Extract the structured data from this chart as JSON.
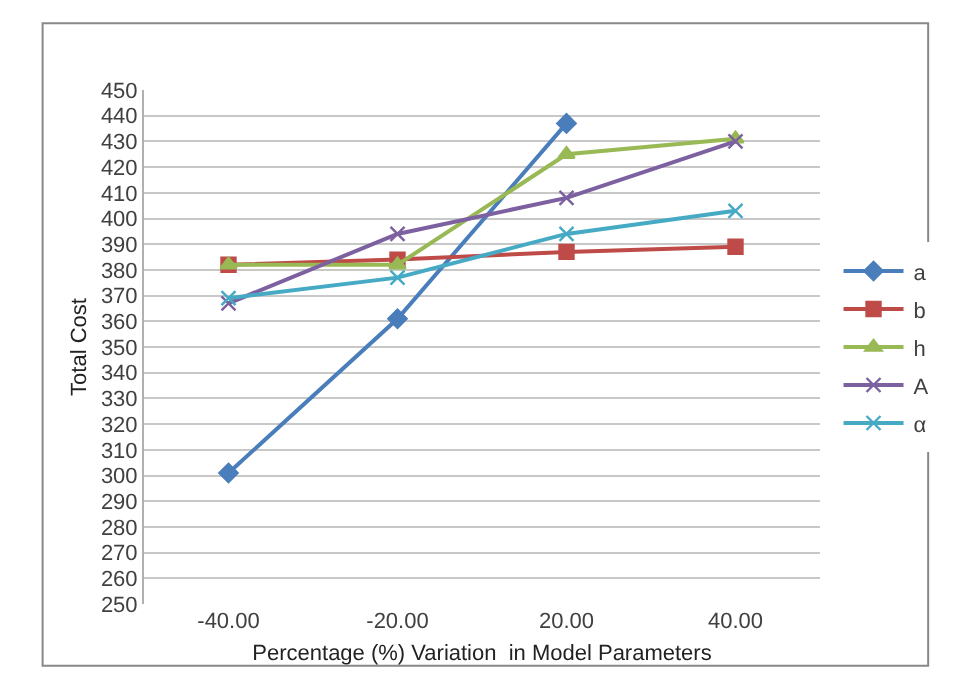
{
  "chart_data": {
    "type": "line",
    "xlabel": "Percentage (%) Variation  in Model Parameters",
    "ylabel": "Total Cost",
    "categories": [
      "-40.00",
      "-20.00",
      "20.00",
      "40.00"
    ],
    "series": [
      {
        "name": "a",
        "color": "#4a7ebb",
        "marker": "diamond",
        "values": [
          301,
          361,
          437,
          null
        ]
      },
      {
        "name": "b",
        "color": "#be4b48",
        "marker": "square",
        "values": [
          382,
          384,
          387,
          389
        ]
      },
      {
        "name": "h",
        "color": "#98b954",
        "marker": "triangle",
        "values": [
          382,
          382,
          425,
          431
        ]
      },
      {
        "name": "A",
        "color": "#7d60a0",
        "marker": "cross",
        "values": [
          367,
          394,
          408,
          430
        ]
      },
      {
        "name": "α",
        "color": "#46aac5",
        "marker": "cross",
        "values": [
          369,
          377,
          394,
          403
        ]
      }
    ],
    "ylim": [
      250,
      450
    ],
    "yticks": [
      250,
      260,
      270,
      280,
      290,
      300,
      310,
      320,
      330,
      340,
      350,
      360,
      370,
      380,
      390,
      400,
      410,
      420,
      430,
      440,
      450
    ],
    "grid": "y",
    "legend": "right",
    "line_style": "solid"
  }
}
